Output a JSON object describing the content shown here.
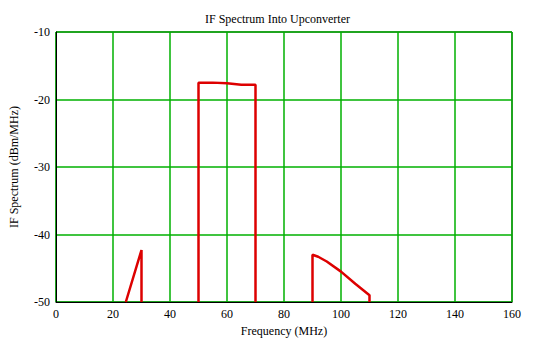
{
  "chart_data": {
    "type": "line",
    "title": "IF Spectrum Into Upconverter",
    "xlabel": "Frequency (MHz)",
    "ylabel": "IF Spectrum (dBm/MHz)",
    "x": [
      24.5,
      30,
      30,
      40,
      50,
      50,
      55,
      60,
      65,
      70,
      70,
      80,
      90,
      90,
      92,
      95,
      100,
      105,
      110,
      110
    ],
    "values": [
      -50,
      -42.3,
      -50,
      null,
      -50,
      -17.5,
      -17.5,
      -17.6,
      -17.8,
      -17.8,
      -50,
      null,
      -50,
      -43,
      -43.3,
      -44,
      -45.5,
      -47.3,
      -49,
      -50
    ],
    "color": "#dd0000",
    "xlim": [
      0,
      160
    ],
    "ylim": [
      -50,
      -10
    ],
    "xticks": [
      0,
      20,
      40,
      60,
      80,
      100,
      120,
      140,
      160
    ],
    "yticks": [
      -50,
      -40,
      -30,
      -20,
      -10
    ],
    "grid": true
  }
}
